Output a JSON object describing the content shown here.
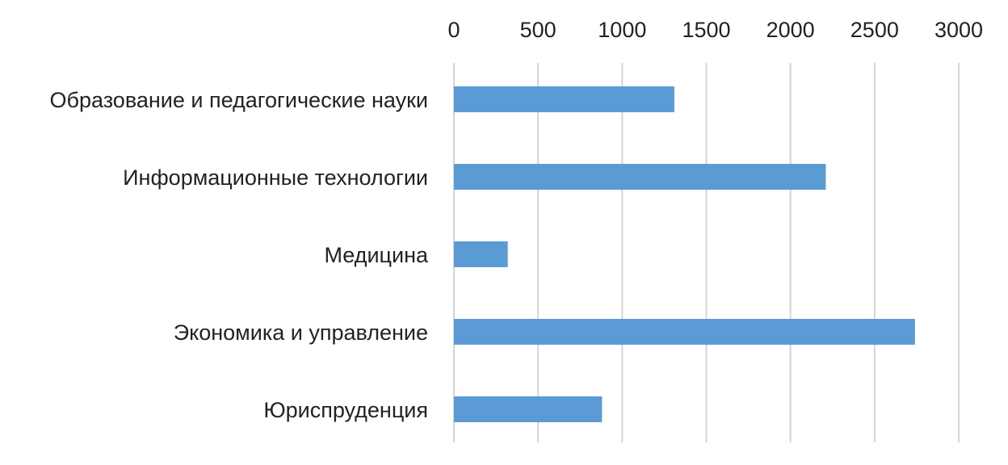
{
  "chart_data": {
    "type": "bar",
    "orientation": "horizontal",
    "title": "",
    "xlabel": "",
    "ylabel": "",
    "xlim": [
      0,
      3000
    ],
    "ticks": [
      0,
      500,
      1000,
      1500,
      2000,
      2500,
      3000
    ],
    "tick_labels": [
      "0",
      "500",
      "1000",
      "1500",
      "2000",
      "2500",
      "3000"
    ],
    "axis_position": "top",
    "grid": true,
    "legend": "none",
    "bar_color": "#5b9bd5",
    "categories": [
      "Образование и педагогические науки",
      "Информационные технологии",
      "Медицина",
      "Экономика и управление",
      "Юриспруденция"
    ],
    "values": [
      1310,
      2210,
      320,
      2740,
      880
    ]
  }
}
